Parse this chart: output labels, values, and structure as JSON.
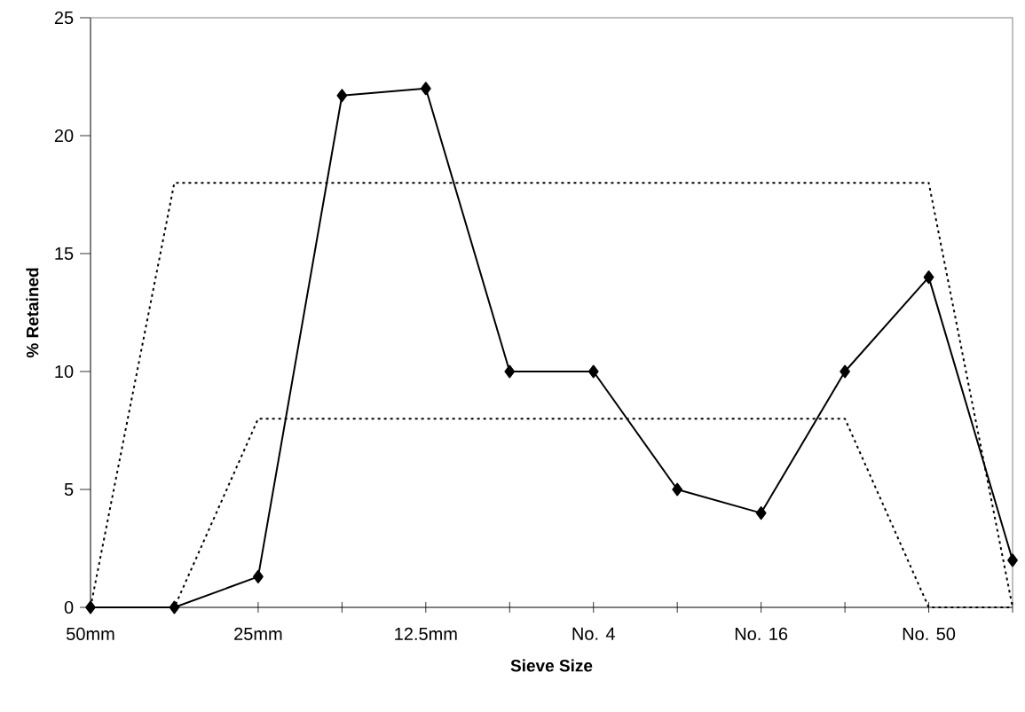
{
  "chart_data": {
    "type": "line",
    "xlabel": "Sieve Size",
    "ylabel": "% Retained",
    "categories": [
      "50mm",
      null,
      "25mm",
      null,
      "12.5mm",
      null,
      "No. 4",
      null,
      "No. 16",
      null,
      "No. 50",
      null
    ],
    "series": [
      {
        "color": "#000000",
        "marker": "diamond",
        "line_style": "solid",
        "values": [
          0,
          0,
          1.3,
          21.7,
          22,
          10,
          10,
          5,
          4,
          10,
          14,
          2
        ]
      },
      {
        "color": "#000000",
        "marker": "none",
        "line_style": "dotted",
        "values": [
          0,
          18,
          18,
          18,
          18,
          18,
          18,
          18,
          18,
          18,
          18,
          0
        ]
      },
      {
        "color": "#000000",
        "marker": "none",
        "line_style": "dotted",
        "values": [
          0,
          0,
          8,
          8,
          8,
          8,
          8,
          8,
          8,
          8,
          0,
          0
        ]
      }
    ],
    "ylim": [
      0,
      25
    ],
    "yticks": [
      0,
      5,
      10,
      15,
      20,
      25
    ],
    "grid": false
  }
}
